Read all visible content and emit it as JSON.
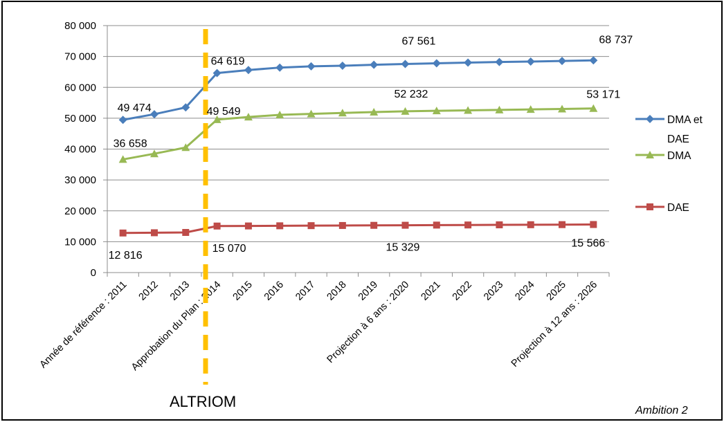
{
  "chart_data": {
    "type": "line",
    "title": "",
    "xlabel": "",
    "ylabel": "",
    "ylim": [
      0,
      80000
    ],
    "y_ticks": [
      "0",
      "10 000",
      "20 000",
      "30 000",
      "40 000",
      "50 000",
      "60 000",
      "70 000",
      "80 000"
    ],
    "categories": [
      "Année de référence : 2011",
      "2012",
      "2013",
      "Approbation du Plan : 2014",
      "2015",
      "2016",
      "2017",
      "2018",
      "2019",
      "Projection à 6 ans : 2020",
      "2021",
      "2022",
      "2023",
      "2024",
      "2025",
      "Projection à 12 ans : 2026"
    ],
    "series": [
      {
        "name": "DMA et DAE",
        "color": "#4a7ebb",
        "marker": "diamond",
        "values": [
          49474,
          51300,
          53500,
          64619,
          65600,
          66400,
          66800,
          67000,
          67300,
          67561,
          67800,
          68000,
          68200,
          68350,
          68550,
          68737
        ]
      },
      {
        "name": "DMA",
        "color": "#98b954",
        "marker": "triangle",
        "values": [
          36658,
          38500,
          40500,
          49549,
          50400,
          51100,
          51400,
          51700,
          52000,
          52232,
          52400,
          52550,
          52700,
          52850,
          53000,
          53171
        ]
      },
      {
        "name": "DAE",
        "color": "#be4b48",
        "marker": "square",
        "values": [
          12816,
          12900,
          13000,
          15070,
          15100,
          15150,
          15200,
          15250,
          15300,
          15329,
          15380,
          15420,
          15460,
          15500,
          15530,
          15566
        ]
      }
    ],
    "data_labels": [
      {
        "series": 0,
        "index": 0,
        "text": "49 474"
      },
      {
        "series": 0,
        "index": 3,
        "text": "64 619"
      },
      {
        "series": 0,
        "index": 9,
        "text": "67 561"
      },
      {
        "series": 0,
        "index": 15,
        "text": "68 737"
      },
      {
        "series": 1,
        "index": 0,
        "text": "36 658"
      },
      {
        "series": 1,
        "index": 3,
        "text": "49 549"
      },
      {
        "series": 1,
        "index": 9,
        "text": "52 232"
      },
      {
        "series": 1,
        "index": 15,
        "text": "53 171"
      },
      {
        "series": 2,
        "index": 0,
        "text": "12 816"
      },
      {
        "series": 2,
        "index": 3,
        "text": "15 070"
      },
      {
        "series": 2,
        "index": 9,
        "text": "15 329"
      },
      {
        "series": 2,
        "index": 15,
        "text": "15 566"
      }
    ],
    "legend": {
      "position": "right",
      "entries": [
        [
          "DMA et",
          "DAE"
        ],
        [
          "DMA"
        ],
        [
          "DAE"
        ]
      ]
    },
    "grid": true,
    "marker_line": {
      "at_category": "Approbation du Plan : 2014",
      "color": "#ffc000",
      "style": "dashed",
      "label": "ALTRIOM"
    },
    "caption": "Ambition 2"
  }
}
